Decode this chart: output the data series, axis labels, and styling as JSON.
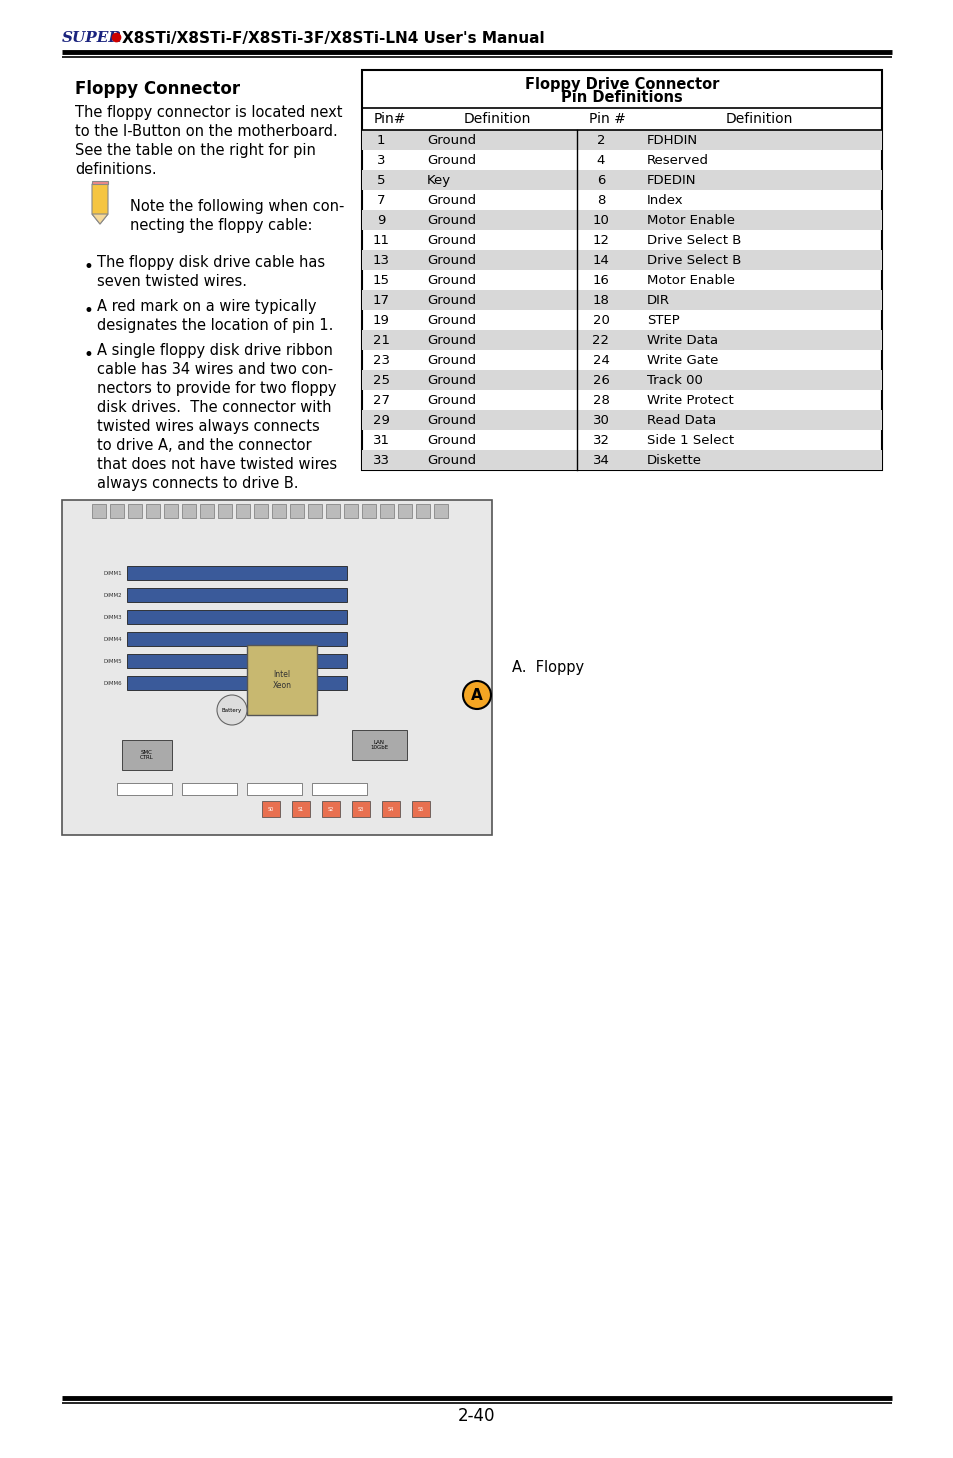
{
  "page_title_super": "SUPER",
  "page_title_rest": "●X8STi/X8STi-F/X8STi-3F/X8STi-LN4 User's Manual",
  "page_number": "2-40",
  "section_title": "Floppy Connector",
  "body_text_lines": [
    "The floppy connector is located next",
    "to the I-Button on the motherboard.",
    "See the table on the right for pin",
    "definitions."
  ],
  "note_text_line1": "Note the following when con-",
  "note_text_line2": "necting the floppy cable:",
  "bullet_points": [
    [
      "The floppy disk drive cable has",
      "seven twisted wires."
    ],
    [
      "A red mark on a wire typically",
      "designates the location of pin 1."
    ],
    [
      "A single floppy disk drive ribbon",
      "cable has 34 wires and two con-",
      "nectors to provide for two floppy",
      "disk drives.  The connector with",
      "twisted wires always connects",
      "to drive A, and the connector",
      "that does not have twisted wires",
      "always connects to drive B."
    ]
  ],
  "table_title_line1": "Floppy Drive Connector",
  "table_title_line2": "Pin Definitions",
  "table_header": [
    "Pin#",
    "Definition",
    "Pin #",
    "Definition"
  ],
  "table_rows": [
    [
      "1",
      "Ground",
      "2",
      "FDHDIN"
    ],
    [
      "3",
      "Ground",
      "4",
      "Reserved"
    ],
    [
      "5",
      "Key",
      "6",
      "FDEDIN"
    ],
    [
      "7",
      "Ground",
      "8",
      "Index"
    ],
    [
      "9",
      "Ground",
      "10",
      "Motor Enable"
    ],
    [
      "11",
      "Ground",
      "12",
      "Drive Select B"
    ],
    [
      "13",
      "Ground",
      "14",
      "Drive Select B"
    ],
    [
      "15",
      "Ground",
      "16",
      "Motor Enable"
    ],
    [
      "17",
      "Ground",
      "18",
      "DIR"
    ],
    [
      "19",
      "Ground",
      "20",
      "STEP"
    ],
    [
      "21",
      "Ground",
      "22",
      "Write Data"
    ],
    [
      "23",
      "Ground",
      "24",
      "Write Gate"
    ],
    [
      "25",
      "Ground",
      "26",
      "Track 00"
    ],
    [
      "27",
      "Ground",
      "28",
      "Write Protect"
    ],
    [
      "29",
      "Ground",
      "30",
      "Read Data"
    ],
    [
      "31",
      "Ground",
      "32",
      "Side 1 Select"
    ],
    [
      "33",
      "Ground",
      "34",
      "Diskette"
    ]
  ],
  "shaded_rows": [
    0,
    2,
    4,
    6,
    8,
    10,
    12,
    14,
    16
  ],
  "row_shade_color": "#d8d8d8",
  "label_A_floppy": "A.  Floppy",
  "bg_color": "#ffffff",
  "header_line_color": "#000000",
  "table_border_color": "#000000",
  "super_color": "#1a237e",
  "dot_color": "#cc0000"
}
